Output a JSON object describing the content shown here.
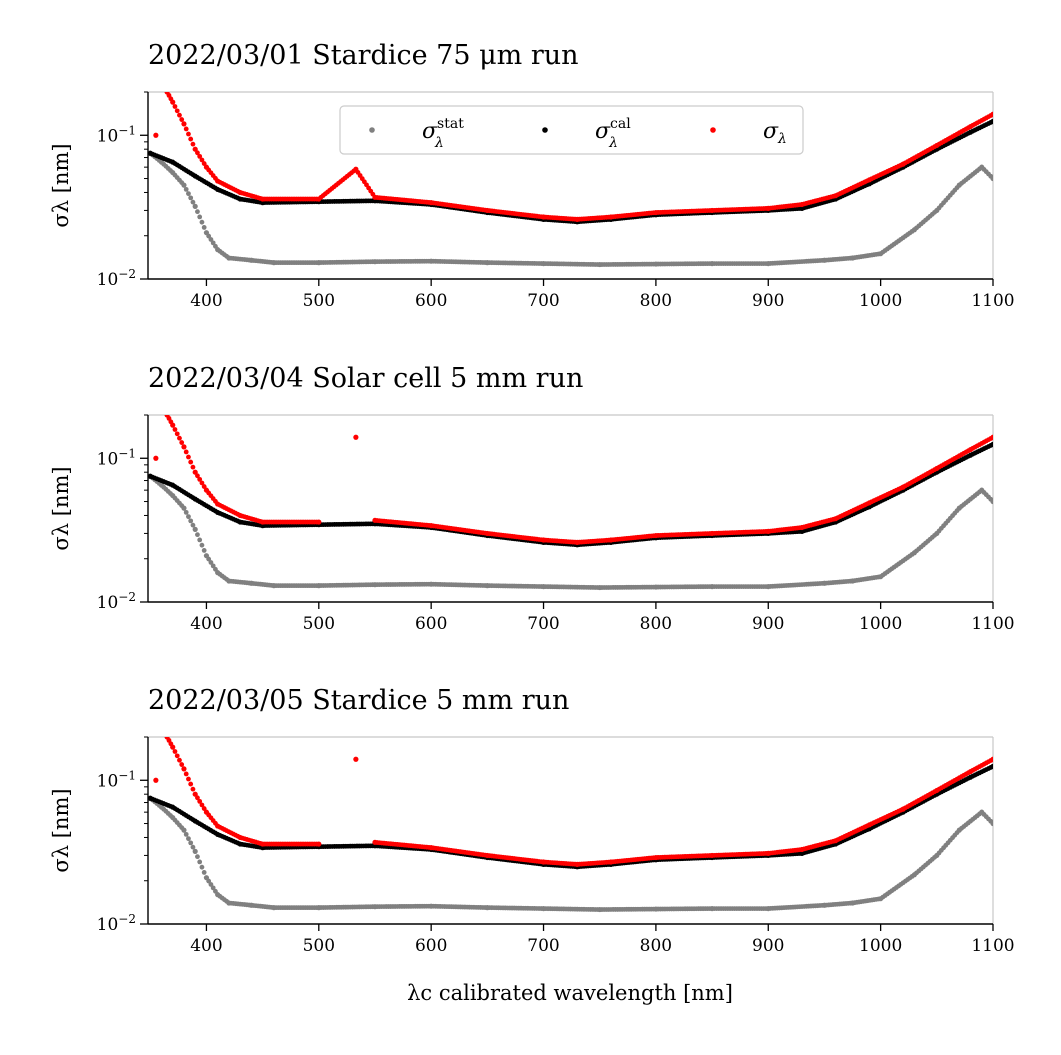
{
  "figure": {
    "xlabel": "λc calibrated wavelength [nm]"
  },
  "legend": {
    "entries": [
      {
        "label": "σλstat",
        "base": "σ",
        "sub": "λ",
        "sup": "stat",
        "color": "#808080"
      },
      {
        "label": "σλcal",
        "base": "σ",
        "sub": "λ",
        "sup": "cal",
        "color": "#000000"
      },
      {
        "label": "σλ",
        "base": "σ",
        "sub": "λ",
        "sup": "",
        "color": "#ff0000"
      }
    ]
  },
  "chart_data": [
    {
      "type": "scatter",
      "title": "2022/03/01 Stardice 75 μm run",
      "ylabel": "σλ [nm]",
      "xlim": [
        348,
        1100
      ],
      "ylim": [
        0.01,
        0.2
      ],
      "yscale": "log",
      "x_ticks": [
        400,
        500,
        600,
        700,
        800,
        900,
        1000,
        1100
      ],
      "y_ticks": [
        {
          "value": 0.01,
          "label": "10−2"
        },
        {
          "value": 0.1,
          "label": "10−1"
        }
      ],
      "legend_position": "top-center",
      "series": [
        {
          "name": "σλstat",
          "color": "#808080",
          "x": [
            350,
            360,
            370,
            380,
            390,
            400,
            410,
            420,
            440,
            460,
            500,
            550,
            600,
            650,
            700,
            750,
            800,
            850,
            900,
            950,
            975,
            1000,
            1030,
            1050,
            1070,
            1090,
            1100
          ],
          "y": [
            0.075,
            0.065,
            0.055,
            0.045,
            0.032,
            0.021,
            0.016,
            0.014,
            0.0135,
            0.013,
            0.013,
            0.0132,
            0.0133,
            0.013,
            0.0128,
            0.0126,
            0.0127,
            0.0128,
            0.0128,
            0.0135,
            0.014,
            0.015,
            0.022,
            0.03,
            0.045,
            0.06,
            0.05
          ]
        },
        {
          "name": "σλcal",
          "color": "#000000",
          "x": [
            350,
            370,
            390,
            410,
            430,
            450,
            500,
            550,
            600,
            650,
            700,
            730,
            760,
            800,
            850,
            900,
            930,
            960,
            990,
            1020,
            1050,
            1080,
            1100
          ],
          "y": [
            0.075,
            0.065,
            0.052,
            0.042,
            0.036,
            0.034,
            0.0345,
            0.035,
            0.033,
            0.029,
            0.026,
            0.025,
            0.026,
            0.028,
            0.029,
            0.03,
            0.031,
            0.036,
            0.046,
            0.06,
            0.08,
            0.105,
            0.125
          ]
        },
        {
          "name": "σλ",
          "color": "#ff0000",
          "x": [
            355,
            365,
            370,
            380,
            390,
            400,
            410,
            430,
            450,
            500,
            533,
            550,
            600,
            650,
            700,
            730,
            760,
            800,
            850,
            900,
            930,
            960,
            990,
            1020,
            1050,
            1080,
            1100
          ],
          "y": [
            0.1,
            0.2,
            0.17,
            0.12,
            0.08,
            0.06,
            0.048,
            0.04,
            0.036,
            0.036,
            0.058,
            0.037,
            0.034,
            0.03,
            0.027,
            0.026,
            0.027,
            0.029,
            0.03,
            0.031,
            0.033,
            0.038,
            0.049,
            0.063,
            0.085,
            0.115,
            0.14
          ]
        }
      ]
    },
    {
      "type": "scatter",
      "title": "2022/03/04 Solar cell 5 mm run",
      "ylabel": "σλ [nm]",
      "xlim": [
        348,
        1100
      ],
      "ylim": [
        0.01,
        0.2
      ],
      "yscale": "log",
      "x_ticks": [
        400,
        500,
        600,
        700,
        800,
        900,
        1000,
        1100
      ],
      "y_ticks": [
        {
          "value": 0.01,
          "label": "10−2"
        },
        {
          "value": 0.1,
          "label": "10−1"
        }
      ],
      "series": [
        {
          "name": "σλstat",
          "color": "#808080",
          "x": [
            350,
            360,
            370,
            380,
            390,
            400,
            410,
            420,
            440,
            460,
            500,
            550,
            600,
            650,
            700,
            750,
            800,
            850,
            900,
            950,
            975,
            1000,
            1030,
            1050,
            1070,
            1090,
            1100
          ],
          "y": [
            0.075,
            0.065,
            0.055,
            0.045,
            0.032,
            0.021,
            0.016,
            0.014,
            0.0135,
            0.013,
            0.013,
            0.0132,
            0.0133,
            0.013,
            0.0128,
            0.0126,
            0.0127,
            0.0128,
            0.0128,
            0.0135,
            0.014,
            0.015,
            0.022,
            0.03,
            0.045,
            0.06,
            0.05
          ]
        },
        {
          "name": "σλcal",
          "color": "#000000",
          "x": [
            350,
            370,
            390,
            410,
            430,
            450,
            500,
            550,
            600,
            650,
            700,
            730,
            760,
            800,
            850,
            900,
            930,
            960,
            990,
            1020,
            1050,
            1080,
            1100
          ],
          "y": [
            0.075,
            0.065,
            0.052,
            0.042,
            0.036,
            0.034,
            0.0345,
            0.035,
            0.033,
            0.029,
            0.026,
            0.025,
            0.026,
            0.028,
            0.029,
            0.03,
            0.031,
            0.036,
            0.046,
            0.06,
            0.08,
            0.105,
            0.125
          ]
        },
        {
          "name": "σλ",
          "color": "#ff0000",
          "x": [
            355,
            365,
            370,
            380,
            390,
            400,
            410,
            430,
            450,
            500,
            533,
            550,
            600,
            650,
            700,
            730,
            760,
            800,
            850,
            900,
            930,
            960,
            990,
            1020,
            1050,
            1080,
            1100
          ],
          "y": [
            0.1,
            0.2,
            0.17,
            0.12,
            0.08,
            0.06,
            0.048,
            0.04,
            0.036,
            0.036,
            0.14,
            0.037,
            0.034,
            0.03,
            0.027,
            0.026,
            0.027,
            0.029,
            0.03,
            0.031,
            0.033,
            0.038,
            0.049,
            0.063,
            0.085,
            0.115,
            0.14
          ]
        }
      ]
    },
    {
      "type": "scatter",
      "title": "2022/03/05 Stardice 5 mm run",
      "ylabel": "σλ [nm]",
      "xlim": [
        348,
        1100
      ],
      "ylim": [
        0.01,
        0.2
      ],
      "yscale": "log",
      "x_ticks": [
        400,
        500,
        600,
        700,
        800,
        900,
        1000,
        1100
      ],
      "y_ticks": [
        {
          "value": 0.01,
          "label": "10−2"
        },
        {
          "value": 0.1,
          "label": "10−1"
        }
      ],
      "series": [
        {
          "name": "σλstat",
          "color": "#808080",
          "x": [
            350,
            360,
            370,
            380,
            390,
            400,
            410,
            420,
            440,
            460,
            500,
            550,
            600,
            650,
            700,
            750,
            800,
            850,
            900,
            950,
            975,
            1000,
            1030,
            1050,
            1070,
            1090,
            1100
          ],
          "y": [
            0.075,
            0.065,
            0.055,
            0.045,
            0.032,
            0.021,
            0.016,
            0.014,
            0.0135,
            0.013,
            0.013,
            0.0132,
            0.0133,
            0.013,
            0.0128,
            0.0126,
            0.0127,
            0.0128,
            0.0128,
            0.0135,
            0.014,
            0.015,
            0.022,
            0.03,
            0.045,
            0.06,
            0.05
          ]
        },
        {
          "name": "σλcal",
          "color": "#000000",
          "x": [
            350,
            370,
            390,
            410,
            430,
            450,
            500,
            550,
            600,
            650,
            700,
            730,
            760,
            800,
            850,
            900,
            930,
            960,
            990,
            1020,
            1050,
            1080,
            1100
          ],
          "y": [
            0.075,
            0.065,
            0.052,
            0.042,
            0.036,
            0.034,
            0.0345,
            0.035,
            0.033,
            0.029,
            0.026,
            0.025,
            0.026,
            0.028,
            0.029,
            0.03,
            0.031,
            0.036,
            0.046,
            0.06,
            0.08,
            0.105,
            0.125
          ]
        },
        {
          "name": "σλ",
          "color": "#ff0000",
          "x": [
            355,
            365,
            370,
            380,
            390,
            400,
            410,
            430,
            450,
            500,
            533,
            550,
            600,
            650,
            700,
            730,
            760,
            800,
            850,
            900,
            930,
            960,
            990,
            1020,
            1050,
            1080,
            1100
          ],
          "y": [
            0.1,
            0.2,
            0.17,
            0.12,
            0.08,
            0.06,
            0.048,
            0.04,
            0.036,
            0.036,
            0.14,
            0.037,
            0.034,
            0.03,
            0.027,
            0.026,
            0.027,
            0.029,
            0.03,
            0.031,
            0.033,
            0.038,
            0.049,
            0.063,
            0.085,
            0.115,
            0.14
          ]
        }
      ]
    }
  ]
}
